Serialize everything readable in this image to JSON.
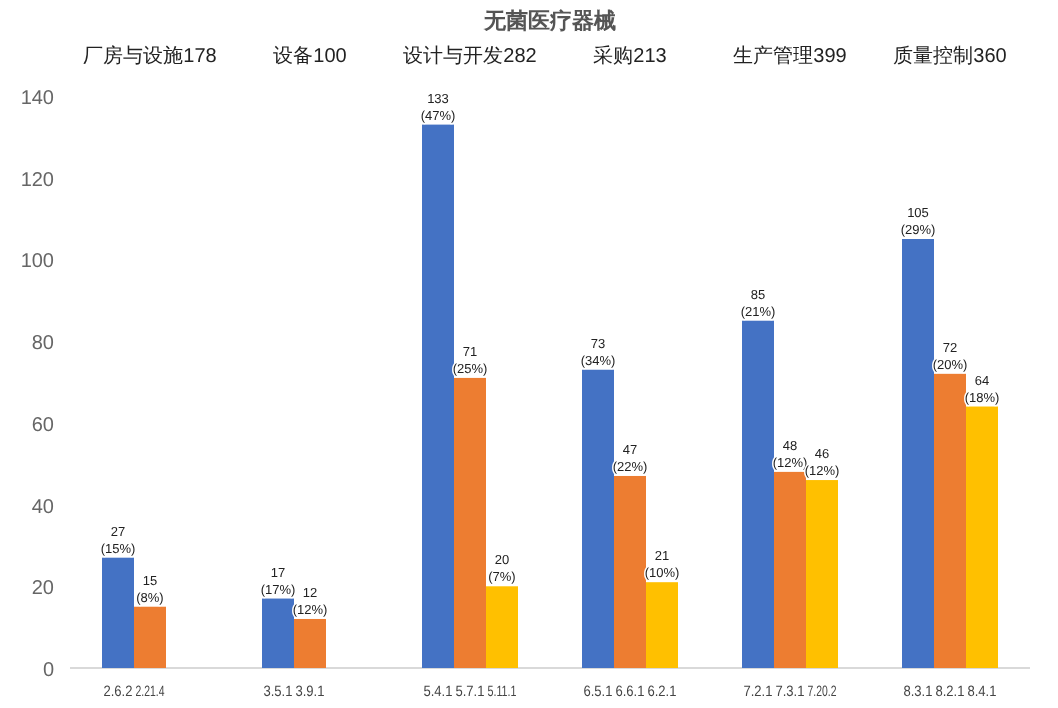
{
  "chart_data": {
    "type": "bar",
    "title": "无菌医疗器械",
    "categories": [
      null,
      "2.6.2",
      "2.21.4",
      null,
      null,
      null,
      "3.5.1",
      "3.9.1",
      null,
      null,
      null,
      "5.4.1",
      "5.7.1",
      "5.11.1",
      null,
      null,
      "6.5.1",
      "6.6.1",
      "6.2.1",
      null,
      null,
      "7.2.1",
      "7.3.1",
      "7.20.2",
      null,
      null,
      "8.3.1",
      "8.2.1",
      "8.4.1",
      null
    ],
    "values": [
      null,
      27,
      15,
      null,
      null,
      null,
      17,
      12,
      null,
      null,
      null,
      133,
      71,
      20,
      null,
      null,
      73,
      47,
      21,
      null,
      null,
      85,
      48,
      46,
      null,
      null,
      105,
      72,
      64,
      null
    ],
    "colors": [
      null,
      "#4472c4",
      "#ed7d31",
      null,
      null,
      null,
      "#4472c4",
      "#ed7d31",
      null,
      null,
      null,
      "#4472c4",
      "#ed7d31",
      "#ffc000",
      null,
      null,
      "#4472c4",
      "#ed7d31",
      "#ffc000",
      null,
      null,
      "#4472c4",
      "#ed7d31",
      "#ffc000",
      null,
      null,
      "#4472c4",
      "#ed7d31",
      "#ffc000",
      null
    ],
    "value_labels": [
      null,
      "27\n(15%)",
      "15\n(8%)",
      null,
      null,
      null,
      "17\n(17%)",
      "12\n(12%)",
      null,
      null,
      null,
      "133\n(47%)",
      "71\n(25%)",
      "20\n(7%)",
      null,
      null,
      "73\n(34%)",
      "47\n(22%)",
      "21\n(10%)",
      null,
      null,
      "85\n(21%)",
      "48\n(12%)",
      "46\n(12%)",
      null,
      null,
      "105\n(29%)",
      "72\n(20%)",
      "64\n(18%)",
      null
    ],
    "annotations": [
      "厂房与设施178",
      "设备100",
      "设计与开发282",
      "采购213",
      "生产管理399",
      "质量控制360"
    ],
    "ylim": [
      0,
      140
    ],
    "yticks": [
      0,
      20,
      40,
      60,
      80,
      100,
      120,
      140
    ],
    "grid": false
  }
}
